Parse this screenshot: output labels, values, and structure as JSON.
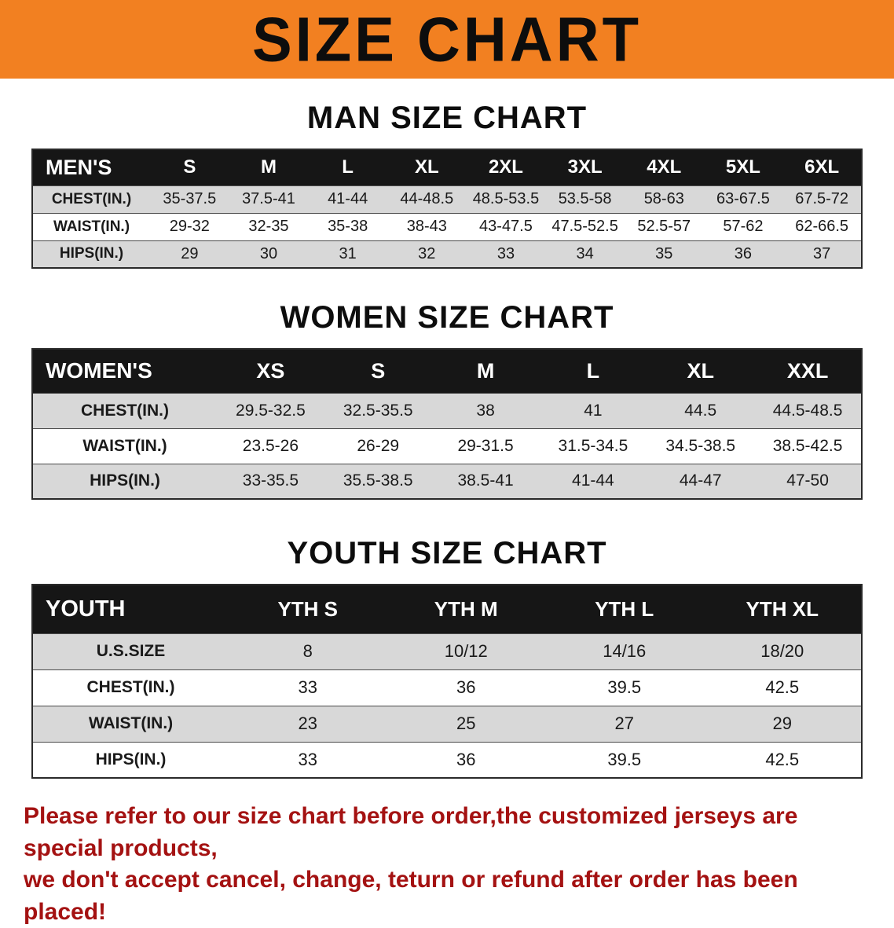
{
  "banner": {
    "title": "SIZE CHART"
  },
  "colors": {
    "banner_bg": "#f28021",
    "header_bg": "#161616",
    "stripe": "#d8d8d8",
    "footer_text": "#a41212"
  },
  "sections": [
    {
      "id": "men",
      "heading": "MAN SIZE CHART",
      "table": {
        "header": [
          "MEN'S",
          "S",
          "M",
          "L",
          "XL",
          "2XL",
          "3XL",
          "4XL",
          "5XL",
          "6XL"
        ],
        "rows": [
          {
            "label": "CHEST(IN.)",
            "values": [
              "35-37.5",
              "37.5-41",
              "41-44",
              "44-48.5",
              "48.5-53.5",
              "53.5-58",
              "58-63",
              "63-67.5",
              "67.5-72"
            ]
          },
          {
            "label": "WAIST(IN.)",
            "values": [
              "29-32",
              "32-35",
              "35-38",
              "38-43",
              "43-47.5",
              "47.5-52.5",
              "52.5-57",
              "57-62",
              "62-66.5"
            ]
          },
          {
            "label": "HIPS(IN.)",
            "values": [
              "29",
              "30",
              "31",
              "32",
              "33",
              "34",
              "35",
              "36",
              "37"
            ]
          }
        ]
      }
    },
    {
      "id": "women",
      "heading": "WOMEN SIZE CHART",
      "table": {
        "header": [
          "WOMEN'S",
          "XS",
          "S",
          "M",
          "L",
          "XL",
          "XXL"
        ],
        "rows": [
          {
            "label": "CHEST(IN.)",
            "values": [
              "29.5-32.5",
              "32.5-35.5",
              "38",
              "41",
              "44.5",
              "44.5-48.5"
            ]
          },
          {
            "label": "WAIST(IN.)",
            "values": [
              "23.5-26",
              "26-29",
              "29-31.5",
              "31.5-34.5",
              "34.5-38.5",
              "38.5-42.5"
            ]
          },
          {
            "label": "HIPS(IN.)",
            "values": [
              "33-35.5",
              "35.5-38.5",
              "38.5-41",
              "41-44",
              "44-47",
              "47-50"
            ]
          }
        ]
      }
    },
    {
      "id": "youth",
      "heading": "YOUTH SIZE CHART",
      "table": {
        "header": [
          "YOUTH",
          "YTH S",
          "YTH M",
          "YTH L",
          "YTH XL"
        ],
        "rows": [
          {
            "label": "U.S.SIZE",
            "values": [
              "8",
              "10/12",
              "14/16",
              "18/20"
            ]
          },
          {
            "label": "CHEST(IN.)",
            "values": [
              "33",
              "36",
              "39.5",
              "42.5"
            ]
          },
          {
            "label": "WAIST(IN.)",
            "values": [
              "23",
              "25",
              "27",
              "29"
            ]
          },
          {
            "label": "HIPS(IN.)",
            "values": [
              "33",
              "36",
              "39.5",
              "42.5"
            ]
          }
        ]
      }
    }
  ],
  "footer": {
    "lines": [
      "Please refer to our size chart before order,the customized jerseys are special products,",
      "we don't accept cancel, change, teturn or refund after order has been placed!"
    ]
  }
}
